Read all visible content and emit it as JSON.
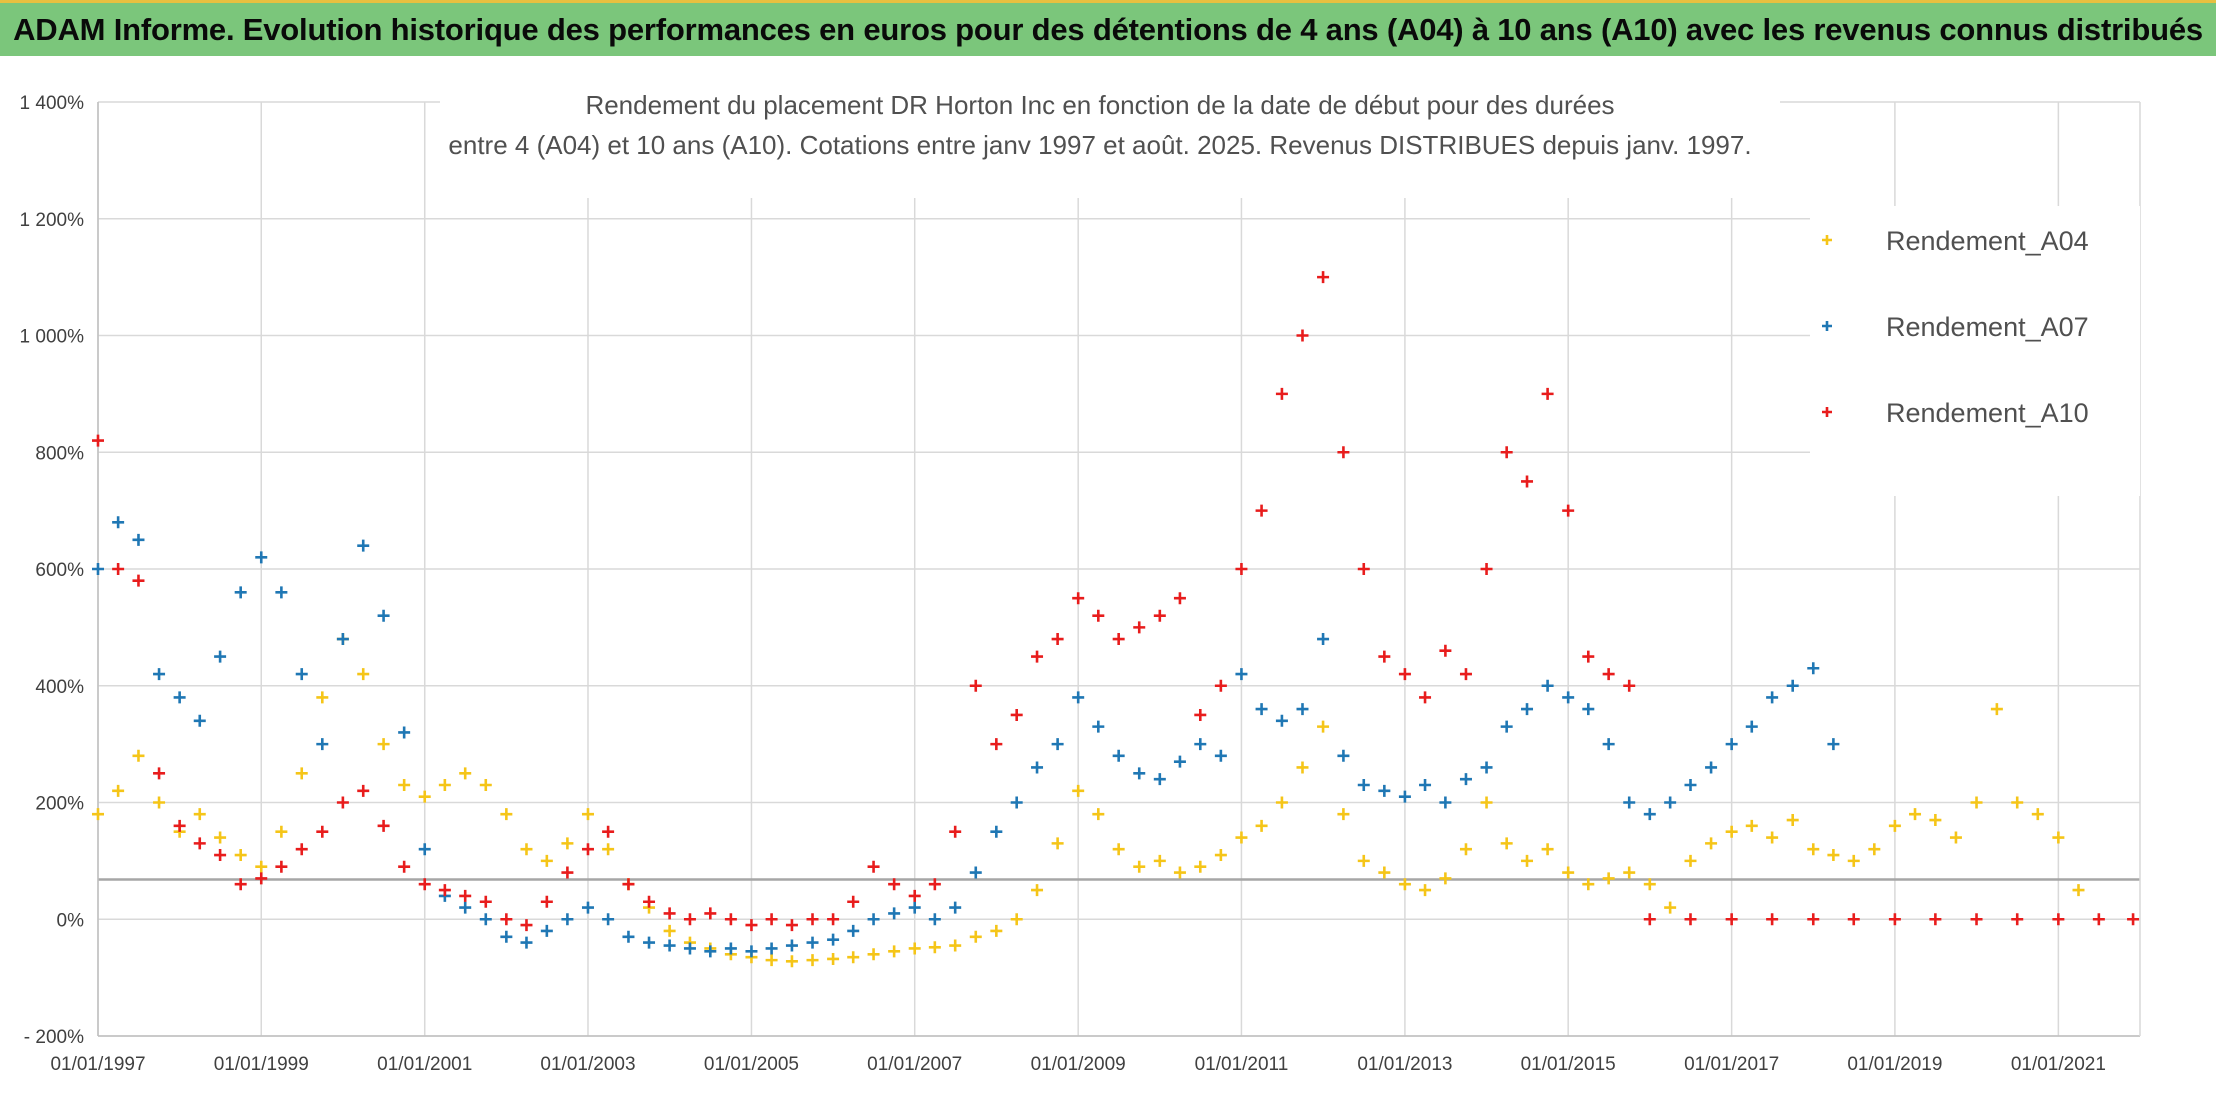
{
  "banner": {
    "title": "ADAM Informe. Evolution historique des performances en euros pour des détentions de 4 ans (A04) à 10 ans (A10) avec les revenus connus distribués"
  },
  "colors": {
    "banner_bg": "#7bc67b",
    "banner_border": "#e8c040",
    "A04": "#f5c518",
    "A07": "#1f77b4",
    "A10": "#e81c1c",
    "grid": "#d9d9d9",
    "ref_line": "#a6a6a6"
  },
  "chart_data": {
    "type": "scatter",
    "title_lines": [
      "Rendement du placement DR Horton Inc en fonction de la date de début pour des durées",
      "entre 4 (A04) et 10 ans (A10). Cotations entre janv 1997 et août. 2025. Revenus DISTRIBUES depuis janv. 1997."
    ],
    "marker": "+",
    "xlim": [
      "1997-01-01",
      "2022-01-01"
    ],
    "ylim": [
      -200,
      1400
    ],
    "y_unit": "%",
    "y_ticks": [
      -200,
      0,
      200,
      400,
      600,
      800,
      1000,
      1200,
      1400
    ],
    "y_tick_labels": [
      "- 200%",
      "0%",
      "200%",
      "400%",
      "600%",
      "800%",
      "1 000%",
      "1 200%",
      "1 400%"
    ],
    "x_tick_labels": [
      "01/01/1997",
      "01/01/1999",
      "01/01/2001",
      "01/01/2003",
      "01/01/2005",
      "01/01/2007",
      "01/01/2009",
      "01/01/2011",
      "01/01/2013",
      "01/01/2015",
      "01/01/2017",
      "01/01/2019",
      "01/01/2021"
    ],
    "reference_line_y": 68,
    "grid": true,
    "legend_position": "top-right",
    "series": [
      {
        "name": "Rendement_A04",
        "x": [
          "1997-01-01",
          "1997-04-01",
          "1997-07-01",
          "1997-10-01",
          "1998-01-01",
          "1998-04-01",
          "1998-07-01",
          "1998-10-01",
          "1999-01-01",
          "1999-04-01",
          "1999-07-01",
          "1999-10-01",
          "2000-01-01",
          "2000-04-01",
          "2000-07-01",
          "2000-10-01",
          "2001-01-01",
          "2001-04-01",
          "2001-07-01",
          "2001-10-01",
          "2002-01-01",
          "2002-04-01",
          "2002-07-01",
          "2002-10-01",
          "2003-01-01",
          "2003-04-01",
          "2003-07-01",
          "2003-10-01",
          "2004-01-01",
          "2004-04-01",
          "2004-07-01",
          "2004-10-01",
          "2005-01-01",
          "2005-04-01",
          "2005-07-01",
          "2005-10-01",
          "2006-01-01",
          "2006-04-01",
          "2006-07-01",
          "2006-10-01",
          "2007-01-01",
          "2007-04-01",
          "2007-07-01",
          "2007-10-01",
          "2008-01-01",
          "2008-04-01",
          "2008-07-01",
          "2008-10-01",
          "2009-01-01",
          "2009-04-01",
          "2009-07-01",
          "2009-10-01",
          "2010-01-01",
          "2010-04-01",
          "2010-07-01",
          "2010-10-01",
          "2011-01-01",
          "2011-04-01",
          "2011-07-01",
          "2011-10-01",
          "2012-01-01",
          "2012-04-01",
          "2012-07-01",
          "2012-10-01",
          "2013-01-01",
          "2013-04-01",
          "2013-07-01",
          "2013-10-01",
          "2014-01-01",
          "2014-04-01",
          "2014-07-01",
          "2014-10-01",
          "2015-01-01",
          "2015-04-01",
          "2015-07-01",
          "2015-10-01",
          "2016-01-01",
          "2016-04-01",
          "2016-07-01",
          "2016-10-01",
          "2017-01-01",
          "2017-04-01",
          "2017-07-01",
          "2017-10-01",
          "2018-01-01",
          "2018-04-01",
          "2018-07-01",
          "2018-10-01",
          "2019-01-01",
          "2019-04-01",
          "2019-07-01",
          "2019-10-01",
          "2020-01-01",
          "2020-04-01",
          "2020-07-01",
          "2020-10-01",
          "2021-01-01",
          "2021-04-01"
        ],
        "y": [
          180,
          220,
          280,
          200,
          150,
          180,
          140,
          110,
          90,
          150,
          250,
          380,
          480,
          420,
          300,
          230,
          210,
          230,
          250,
          230,
          180,
          120,
          100,
          130,
          180,
          120,
          60,
          20,
          -20,
          -40,
          -50,
          -60,
          -65,
          -70,
          -72,
          -70,
          -68,
          -65,
          -60,
          -55,
          -50,
          -48,
          -45,
          -30,
          -20,
          0,
          50,
          130,
          220,
          180,
          120,
          90,
          100,
          80,
          90,
          110,
          140,
          160,
          200,
          260,
          330,
          180,
          100,
          80,
          60,
          50,
          70,
          120,
          200,
          130,
          100,
          120,
          80,
          60,
          70,
          80,
          60,
          20,
          100,
          130,
          150,
          160,
          140,
          170,
          120,
          110,
          100,
          120,
          160,
          180,
          170,
          140,
          200,
          360,
          200,
          180,
          140,
          50
        ]
      },
      {
        "name": "Rendement_A07",
        "x": [
          "1997-01-01",
          "1997-04-01",
          "1997-07-01",
          "1997-10-01",
          "1998-01-01",
          "1998-04-01",
          "1998-07-01",
          "1998-10-01",
          "1999-01-01",
          "1999-04-01",
          "1999-07-01",
          "1999-10-01",
          "2000-01-01",
          "2000-04-01",
          "2000-07-01",
          "2000-10-01",
          "2001-01-01",
          "2001-04-01",
          "2001-07-01",
          "2001-10-01",
          "2002-01-01",
          "2002-04-01",
          "2002-07-01",
          "2002-10-01",
          "2003-01-01",
          "2003-04-01",
          "2003-07-01",
          "2003-10-01",
          "2004-01-01",
          "2004-04-01",
          "2004-07-01",
          "2004-10-01",
          "2005-01-01",
          "2005-04-01",
          "2005-07-01",
          "2005-10-01",
          "2006-01-01",
          "2006-04-01",
          "2006-07-01",
          "2006-10-01",
          "2007-01-01",
          "2007-04-01",
          "2007-07-01",
          "2007-10-01",
          "2008-01-01",
          "2008-04-01",
          "2008-07-01",
          "2008-10-01",
          "2009-01-01",
          "2009-04-01",
          "2009-07-01",
          "2009-10-01",
          "2010-01-01",
          "2010-04-01",
          "2010-07-01",
          "2010-10-01",
          "2011-01-01",
          "2011-04-01",
          "2011-07-01",
          "2011-10-01",
          "2012-01-01",
          "2012-04-01",
          "2012-07-01",
          "2012-10-01",
          "2013-01-01",
          "2013-04-01",
          "2013-07-01",
          "2013-10-01",
          "2014-01-01",
          "2014-04-01",
          "2014-07-01",
          "2014-10-01",
          "2015-01-01",
          "2015-04-01",
          "2015-07-01",
          "2015-10-01",
          "2016-01-01",
          "2016-04-01",
          "2016-07-01",
          "2016-10-01",
          "2017-01-01",
          "2017-04-01",
          "2017-07-01",
          "2017-10-01",
          "2018-01-01",
          "2018-04-01"
        ],
        "y": [
          600,
          680,
          650,
          420,
          380,
          340,
          450,
          560,
          620,
          560,
          420,
          300,
          480,
          640,
          520,
          320,
          120,
          40,
          20,
          0,
          -30,
          -40,
          -20,
          0,
          20,
          0,
          -30,
          -40,
          -45,
          -50,
          -55,
          -50,
          -55,
          -50,
          -45,
          -40,
          -35,
          -20,
          0,
          10,
          20,
          0,
          20,
          80,
          150,
          200,
          260,
          300,
          380,
          330,
          280,
          250,
          240,
          270,
          300,
          280,
          420,
          360,
          340,
          360,
          480,
          280,
          230,
          220,
          210,
          230,
          200,
          240,
          260,
          330,
          360,
          400,
          380,
          360,
          300,
          200,
          180,
          200,
          230,
          260,
          300,
          330,
          380,
          400,
          430,
          300
        ]
      },
      {
        "name": "Rendement_A10",
        "x": [
          "1997-01-01",
          "1997-04-01",
          "1997-07-01",
          "1997-10-01",
          "1998-01-01",
          "1998-04-01",
          "1998-07-01",
          "1998-10-01",
          "1999-01-01",
          "1999-04-01",
          "1999-07-01",
          "1999-10-01",
          "2000-01-01",
          "2000-04-01",
          "2000-07-01",
          "2000-10-01",
          "2001-01-01",
          "2001-04-01",
          "2001-07-01",
          "2001-10-01",
          "2002-01-01",
          "2002-04-01",
          "2002-07-01",
          "2002-10-01",
          "2003-01-01",
          "2003-04-01",
          "2003-07-01",
          "2003-10-01",
          "2004-01-01",
          "2004-04-01",
          "2004-07-01",
          "2004-10-01",
          "2005-01-01",
          "2005-04-01",
          "2005-07-01",
          "2005-10-01",
          "2006-01-01",
          "2006-04-01",
          "2006-07-01",
          "2006-10-01",
          "2007-01-01",
          "2007-04-01",
          "2007-07-01",
          "2007-10-01",
          "2008-01-01",
          "2008-04-01",
          "2008-07-01",
          "2008-10-01",
          "2009-01-01",
          "2009-04-01",
          "2009-07-01",
          "2009-10-01",
          "2010-01-01",
          "2010-04-01",
          "2010-07-01",
          "2010-10-01",
          "2011-01-01",
          "2011-04-01",
          "2011-07-01",
          "2011-10-01",
          "2012-01-01",
          "2012-04-01",
          "2012-07-01",
          "2012-10-01",
          "2013-01-01",
          "2013-04-01",
          "2013-07-01",
          "2013-10-01",
          "2014-01-01",
          "2014-04-01",
          "2014-07-01",
          "2014-10-01",
          "2015-01-01",
          "2015-04-01",
          "2015-07-01",
          "2015-10-01",
          "2016-01-01",
          "2016-07-01",
          "2017-01-01",
          "2017-07-01",
          "2018-01-01",
          "2018-07-01",
          "2019-01-01",
          "2019-07-01",
          "2020-01-01",
          "2020-07-01",
          "2021-01-01",
          "2021-07-01",
          "2021-12-01"
        ],
        "y": [
          820,
          600,
          580,
          250,
          160,
          130,
          110,
          60,
          70,
          90,
          120,
          150,
          200,
          220,
          160,
          90,
          60,
          50,
          40,
          30,
          0,
          -10,
          30,
          80,
          120,
          150,
          60,
          30,
          10,
          0,
          10,
          0,
          -10,
          0,
          -10,
          0,
          0,
          30,
          90,
          60,
          40,
          60,
          150,
          400,
          300,
          350,
          450,
          480,
          550,
          520,
          480,
          500,
          520,
          550,
          350,
          400,
          600,
          700,
          900,
          1000,
          1100,
          800,
          600,
          450,
          420,
          380,
          460,
          420,
          600,
          800,
          750,
          900,
          700,
          450,
          420,
          400,
          0,
          0,
          0,
          0,
          0,
          0,
          0,
          0,
          0,
          0,
          0,
          0,
          0
        ]
      }
    ]
  }
}
